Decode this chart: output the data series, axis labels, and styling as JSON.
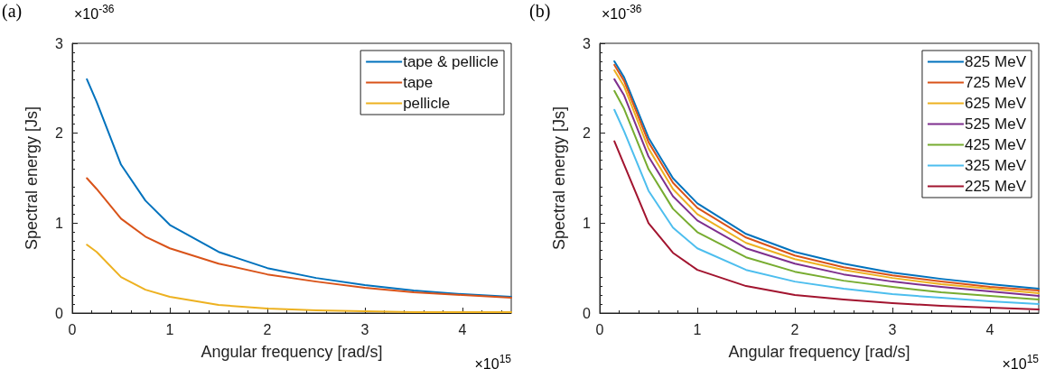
{
  "chart_data": [
    {
      "type": "line",
      "xlabel": "Angular frequency [rad/s]",
      "ylabel": "Spectral energy [Js]",
      "annotations": [
        "(a)",
        "×10$^{-36}$",
        "×10$^{15}$"
      ],
      "x": [
        0.15,
        0.25,
        0.5,
        0.75,
        1,
        1.5,
        2,
        2.5,
        3,
        3.5,
        4,
        4.5
      ],
      "xlim": [
        0,
        4.5
      ],
      "xticks": [
        0,
        1,
        2,
        3,
        4
      ],
      "ylim": [
        0,
        3
      ],
      "yticks": [
        0,
        1,
        2,
        3
      ],
      "grid": false,
      "legend": "top right",
      "line_style": "solid",
      "series": [
        {
          "name": "tape & pellicle",
          "color": "#0072bd",
          "values": [
            2.6,
            2.35,
            1.65,
            1.25,
            0.98,
            0.68,
            0.5,
            0.39,
            0.31,
            0.25,
            0.21,
            0.18
          ]
        },
        {
          "name": "tape",
          "color": "#d95319",
          "values": [
            1.5,
            1.38,
            1.05,
            0.85,
            0.72,
            0.55,
            0.43,
            0.35,
            0.28,
            0.23,
            0.2,
            0.17
          ]
        },
        {
          "name": "pellicle",
          "color": "#edb120",
          "values": [
            0.76,
            0.68,
            0.4,
            0.26,
            0.18,
            0.09,
            0.05,
            0.03,
            0.02,
            0.01,
            0.01,
            0.01
          ]
        }
      ]
    },
    {
      "type": "line",
      "xlabel": "Angular frequency [rad/s]",
      "ylabel": "Spectral energy [Js]",
      "annotations": [
        "(b)",
        "×10$^{-36}$",
        "×10$^{15}$"
      ],
      "x": [
        0.15,
        0.25,
        0.5,
        0.75,
        1,
        1.5,
        2,
        2.5,
        3,
        3.5,
        4,
        4.5
      ],
      "xlim": [
        0,
        4.5
      ],
      "xticks": [
        0,
        1,
        2,
        3,
        4
      ],
      "ylim": [
        0,
        3
      ],
      "yticks": [
        0,
        1,
        2,
        3
      ],
      "grid": false,
      "legend": "top right",
      "line_style": "solid",
      "series": [
        {
          "name": "825 MeV",
          "color": "#0072bd",
          "values": [
            2.8,
            2.62,
            1.95,
            1.5,
            1.22,
            0.88,
            0.68,
            0.55,
            0.45,
            0.38,
            0.32,
            0.27
          ]
        },
        {
          "name": "725 MeV",
          "color": "#d95319",
          "values": [
            2.76,
            2.58,
            1.9,
            1.45,
            1.17,
            0.84,
            0.64,
            0.51,
            0.42,
            0.35,
            0.29,
            0.25
          ]
        },
        {
          "name": "625 MeV",
          "color": "#edb120",
          "values": [
            2.7,
            2.52,
            1.83,
            1.38,
            1.1,
            0.78,
            0.6,
            0.48,
            0.39,
            0.32,
            0.27,
            0.22
          ]
        },
        {
          "name": "525 MeV",
          "color": "#7e2f8e",
          "values": [
            2.6,
            2.42,
            1.74,
            1.3,
            1.03,
            0.72,
            0.55,
            0.43,
            0.35,
            0.29,
            0.24,
            0.19
          ]
        },
        {
          "name": "425 MeV",
          "color": "#77ac30",
          "values": [
            2.47,
            2.27,
            1.6,
            1.16,
            0.9,
            0.62,
            0.46,
            0.36,
            0.29,
            0.23,
            0.19,
            0.15
          ]
        },
        {
          "name": "325 MeV",
          "color": "#4dbeee",
          "values": [
            2.26,
            2.02,
            1.36,
            0.95,
            0.72,
            0.48,
            0.35,
            0.27,
            0.21,
            0.17,
            0.13,
            0.1
          ]
        },
        {
          "name": "225 MeV",
          "color": "#a2142f",
          "values": [
            1.91,
            1.65,
            1.0,
            0.67,
            0.48,
            0.3,
            0.2,
            0.15,
            0.11,
            0.08,
            0.06,
            0.04
          ]
        }
      ]
    }
  ]
}
